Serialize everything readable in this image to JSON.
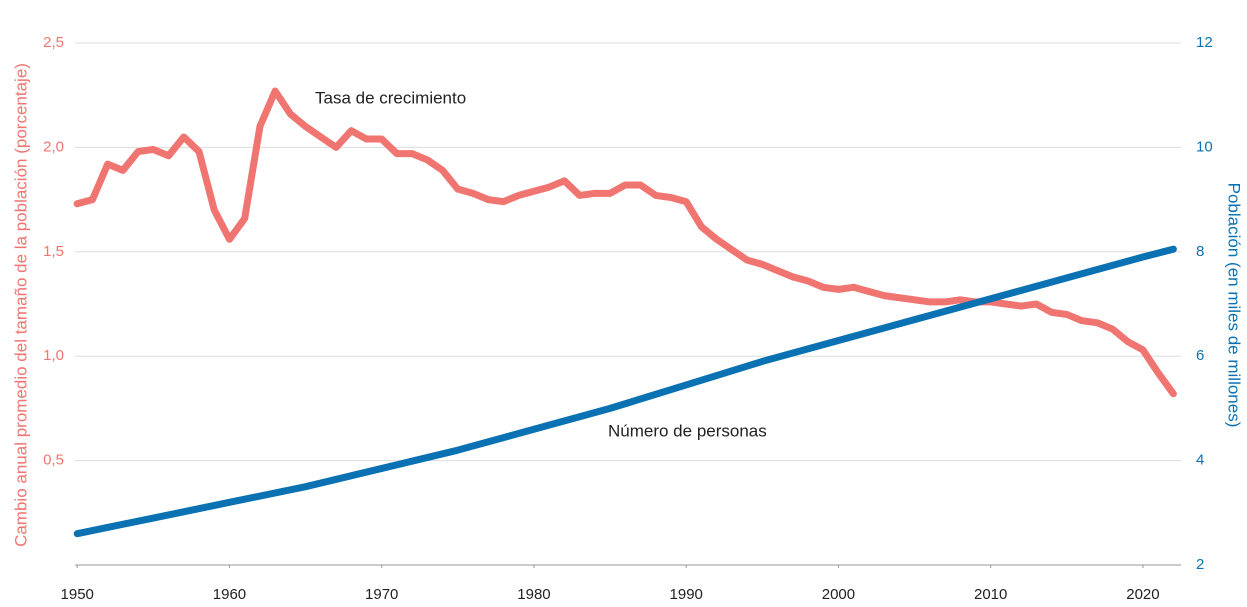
{
  "chart_data": {
    "type": "line",
    "ylabel": "Cambio anual promedio del tamaño de la población (porcentaje)",
    "y2label": "Población (en miles de millones)",
    "annotations": [
      "Tasa de crecimiento",
      "Número de personas"
    ],
    "xlim": [
      1949,
      2022.5
    ],
    "xticks": [
      1950,
      1960,
      1970,
      1980,
      1990,
      2000,
      2010,
      2020
    ],
    "ylim": [
      0,
      2.5
    ],
    "yticks": [
      {
        "value": 0.5,
        "label": "0,5"
      },
      {
        "value": 1.0,
        "label": "1,0"
      },
      {
        "value": 1.5,
        "label": "1,5"
      },
      {
        "value": 2.0,
        "label": "2,0"
      },
      {
        "value": 2.5,
        "label": "2,5"
      }
    ],
    "y2lim": [
      2,
      12
    ],
    "y2ticks": [
      2,
      4,
      6,
      8,
      10,
      12
    ],
    "grid": true,
    "series": [
      {
        "name": "Tasa de crecimiento",
        "color": "#f07470",
        "x": [
          1950,
          1951,
          1952,
          1953,
          1954,
          1955,
          1956,
          1957,
          1958,
          1959,
          1960,
          1961,
          1962,
          1963,
          1964,
          1965,
          1966,
          1967,
          1968,
          1969,
          1970,
          1971,
          1972,
          1973,
          1974,
          1975,
          1976,
          1977,
          1978,
          1979,
          1980,
          1981,
          1982,
          1983,
          1984,
          1985,
          1986,
          1987,
          1988,
          1989,
          1990,
          1991,
          1992,
          1993,
          1994,
          1995,
          1996,
          1997,
          1998,
          1999,
          2000,
          2001,
          2002,
          2003,
          2004,
          2005,
          2006,
          2007,
          2008,
          2009,
          2010,
          2011,
          2012,
          2013,
          2014,
          2015,
          2016,
          2017,
          2018,
          2019,
          2020,
          2021,
          2022
        ],
        "values": [
          1.73,
          1.75,
          1.92,
          1.89,
          1.98,
          1.99,
          1.96,
          2.05,
          1.98,
          1.7,
          1.56,
          1.66,
          2.1,
          2.27,
          2.16,
          2.1,
          2.05,
          2.0,
          2.08,
          2.04,
          2.04,
          1.97,
          1.97,
          1.94,
          1.89,
          1.8,
          1.78,
          1.75,
          1.74,
          1.77,
          1.79,
          1.81,
          1.84,
          1.77,
          1.78,
          1.78,
          1.82,
          1.82,
          1.77,
          1.76,
          1.74,
          1.62,
          1.56,
          1.51,
          1.46,
          1.44,
          1.41,
          1.38,
          1.36,
          1.33,
          1.32,
          1.33,
          1.31,
          1.29,
          1.28,
          1.27,
          1.26,
          1.26,
          1.27,
          1.26,
          1.26,
          1.25,
          1.24,
          1.25,
          1.21,
          1.2,
          1.17,
          1.16,
          1.13,
          1.07,
          1.03,
          0.92,
          0.82
        ]
      },
      {
        "name": "Número de personas",
        "color": "#0a72b2",
        "axis": "y2",
        "x": [
          1950,
          1955,
          1960,
          1965,
          1970,
          1975,
          1980,
          1985,
          1990,
          1995,
          2000,
          2005,
          2010,
          2015,
          2020,
          2022
        ],
        "values": [
          2.6,
          2.9,
          3.2,
          3.5,
          3.85,
          4.2,
          4.6,
          5.0,
          5.45,
          5.9,
          6.3,
          6.7,
          7.1,
          7.5,
          7.9,
          8.05
        ]
      }
    ]
  }
}
